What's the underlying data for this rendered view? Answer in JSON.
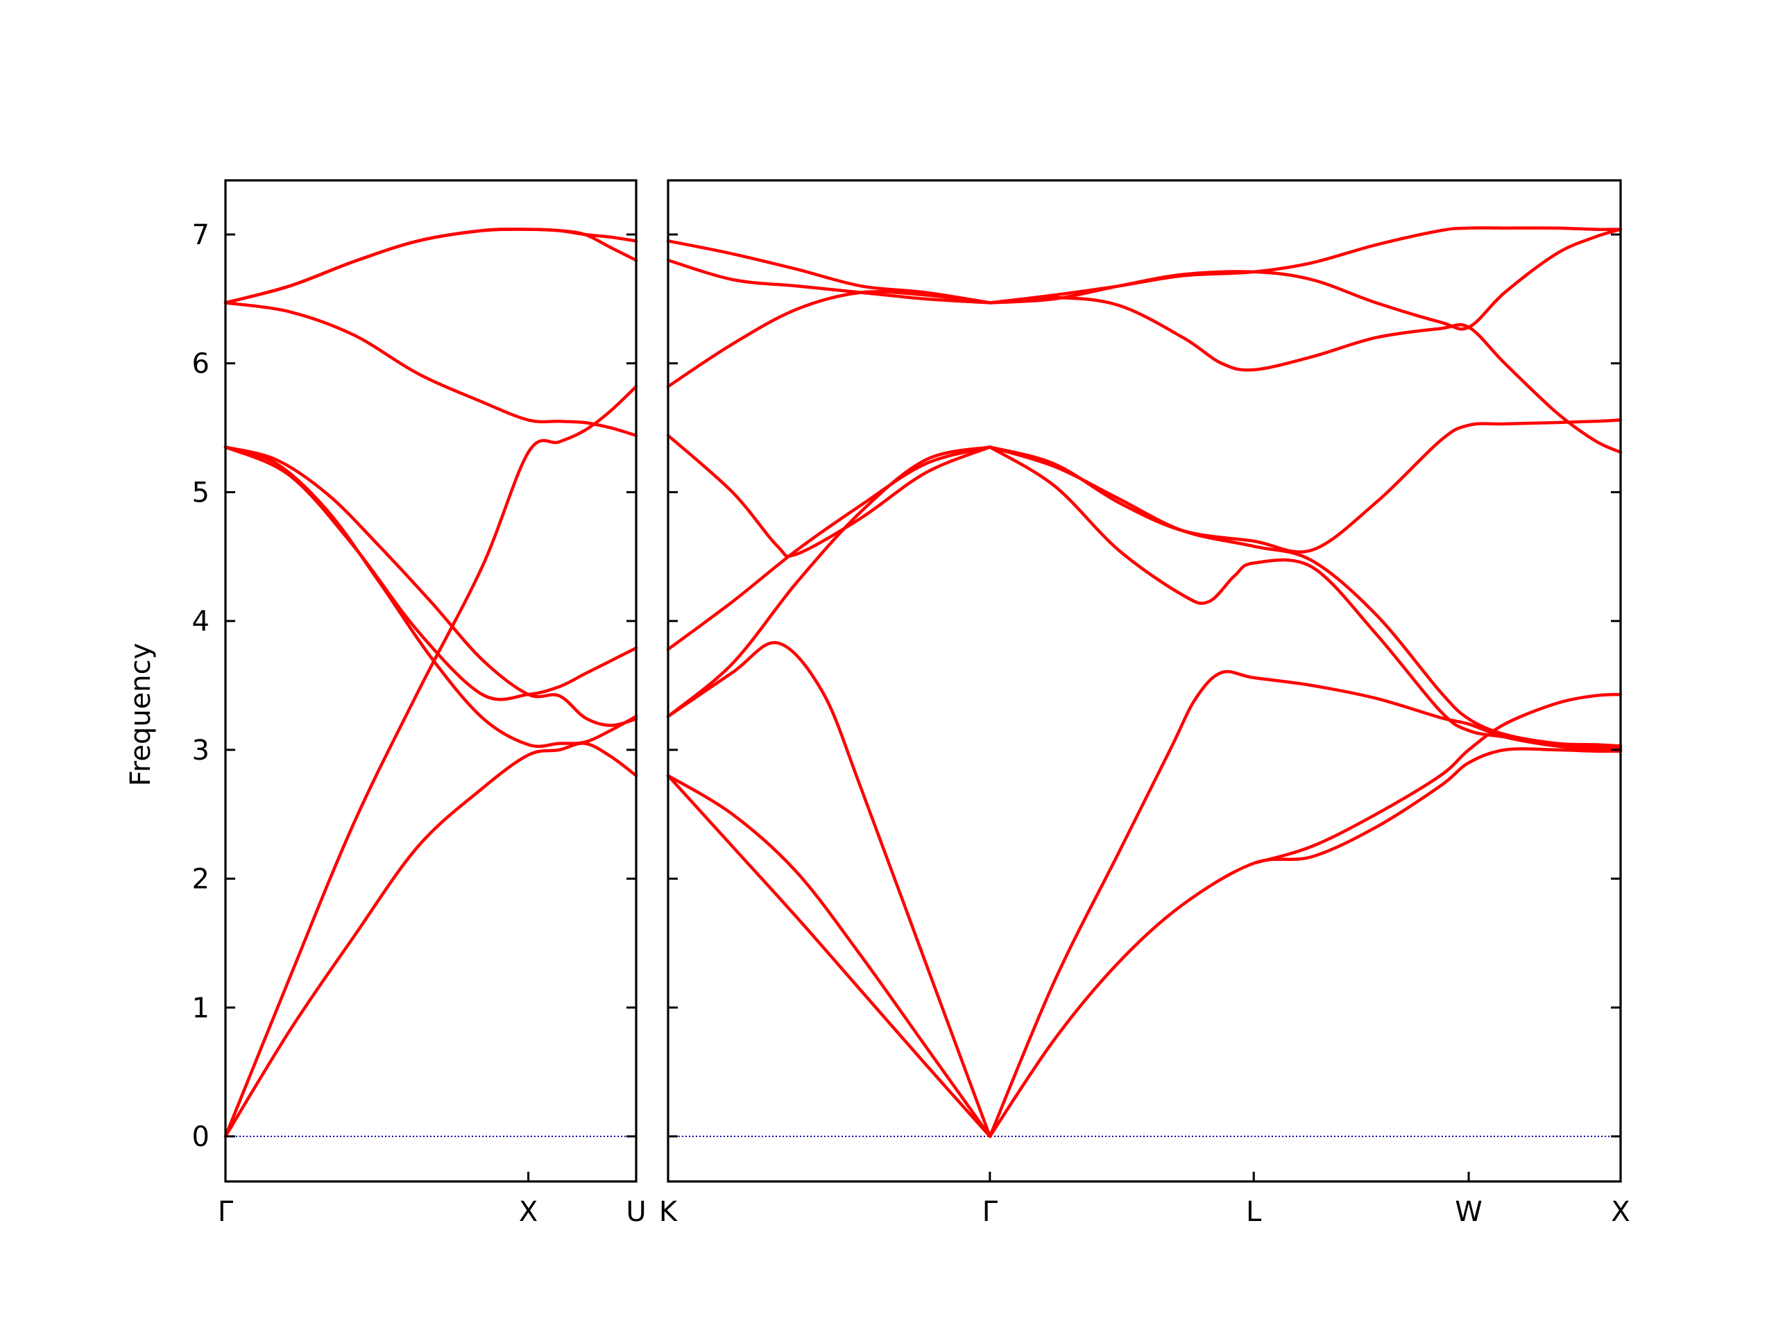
{
  "chart_data": {
    "type": "line",
    "ylabel": "Frequency",
    "ylim": [
      -0.35,
      7.42
    ],
    "yticks": [
      0,
      1,
      2,
      3,
      4,
      5,
      6,
      7
    ],
    "line_color": "#ff0000",
    "zero_line_color": "#0000aa",
    "grid": false,
    "panels": [
      {
        "xlim": [
          0,
          3.2
        ],
        "ticks": [
          {
            "x": 0,
            "label": "Γ"
          },
          {
            "x": 2.36,
            "label": "X"
          },
          {
            "x": 3.2,
            "label": "U"
          }
        ],
        "bands": [
          {
            "x": [
              0,
              0.5,
              1.0,
              1.5,
              2.0,
              2.36,
              2.6,
              2.8,
              3.0,
              3.2
            ],
            "y": [
              0,
              1.23,
              2.43,
              3.45,
              4.42,
              5.31,
              5.39,
              5.48,
              5.63,
              5.82
            ]
          },
          {
            "x": [
              0,
              0.5,
              1.0,
              1.5,
              2.0,
              2.36,
              2.6,
              2.8,
              3.0,
              3.2
            ],
            "y": [
              0,
              0.82,
              1.55,
              2.25,
              2.7,
              2.96,
              3.0,
              3.05,
              2.95,
              2.8
            ]
          },
          {
            "x": [
              0,
              0.4,
              0.8,
              1.2,
              1.6,
              2.0,
              2.36,
              2.6,
              2.8,
              3.0,
              3.2
            ],
            "y": [
              5.35,
              5.22,
              4.85,
              4.3,
              3.72,
              3.25,
              3.04,
              3.05,
              3.06,
              3.15,
              3.26
            ]
          },
          {
            "x": [
              0,
              0.4,
              0.8,
              1.2,
              1.6,
              2.0,
              2.36,
              2.6,
              2.8,
              3.0,
              3.2
            ],
            "y": [
              5.35,
              5.25,
              4.98,
              4.58,
              4.15,
              3.7,
              3.43,
              3.42,
              3.25,
              3.19,
              3.24
            ]
          },
          {
            "x": [
              0,
              0.5,
              1.0,
              1.5,
              2.0,
              2.36,
              2.6,
              2.8,
              3.0,
              3.2
            ],
            "y": [
              5.35,
              5.13,
              4.58,
              3.92,
              3.43,
              3.43,
              3.49,
              3.59,
              3.69,
              3.79
            ]
          },
          {
            "x": [
              0,
              0.5,
              1.0,
              1.5,
              2.0,
              2.36,
              2.6,
              2.8,
              3.0,
              3.2
            ],
            "y": [
              6.47,
              6.4,
              6.22,
              5.92,
              5.7,
              5.56,
              5.55,
              5.54,
              5.5,
              5.44
            ]
          },
          {
            "x": [
              0,
              0.5,
              1.0,
              1.5,
              2.0,
              2.36,
              2.6,
              2.8,
              3.0,
              3.2
            ],
            "y": [
              6.47,
              6.6,
              6.79,
              6.95,
              7.03,
              7.04,
              7.03,
              7.0,
              6.9,
              6.8
            ]
          },
          {
            "x": [
              0,
              0.5,
              1.0,
              1.5,
              2.0,
              2.36,
              2.6,
              2.8,
              3.0,
              3.2
            ],
            "y": [
              6.47,
              6.6,
              6.79,
              6.95,
              7.03,
              7.04,
              7.03,
              7.0,
              6.98,
              6.95
            ]
          }
        ]
      },
      {
        "xlim": [
          0,
          7.4
        ],
        "ticks": [
          {
            "x": 0,
            "label": "K"
          },
          {
            "x": 2.5,
            "label": "Γ"
          },
          {
            "x": 4.55,
            "label": "L"
          },
          {
            "x": 6.22,
            "label": "W"
          },
          {
            "x": 7.4,
            "label": "X"
          }
        ],
        "bands": [
          {
            "x": [
              0,
              0.5,
              1.0,
              1.5,
              2.0,
              2.5
            ],
            "y": [
              2.8,
              2.25,
              1.7,
              1.13,
              0.56,
              0
            ]
          },
          {
            "x": [
              0,
              0.5,
              1.0,
              1.5,
              2.0,
              2.5
            ],
            "y": [
              2.8,
              2.5,
              2.05,
              1.4,
              0.7,
              0
            ]
          },
          {
            "x": [
              0,
              0.5,
              0.85,
              1.2,
              1.5,
              2.0,
              2.5
            ],
            "y": [
              3.26,
              3.6,
              3.83,
              3.45,
              2.7,
              1.35,
              0
            ]
          },
          {
            "x": [
              2.5,
              3.0,
              3.5,
              3.9,
              4.1,
              4.3,
              4.55,
              5.0,
              5.5,
              6.0,
              6.22,
              6.5,
              6.9,
              7.2,
              7.4
            ],
            "y": [
              0,
              1.2,
              2.2,
              3.0,
              3.4,
              3.6,
              3.56,
              3.5,
              3.4,
              3.25,
              3.2,
              3.1,
              3.03,
              3.01,
              3.0
            ]
          },
          {
            "x": [
              2.5,
              3.0,
              3.5,
              4.0,
              4.55,
              5.0,
              5.5,
              6.0,
              6.22,
              6.5,
              6.9,
              7.2,
              7.4
            ],
            "y": [
              0,
              0.75,
              1.35,
              1.8,
              2.12,
              2.17,
              2.4,
              2.72,
              2.9,
              3.0,
              3.0,
              2.99,
              2.99
            ]
          },
          {
            "x": [
              4.55,
              5.0,
              5.5,
              6.0,
              6.22,
              6.5,
              6.9,
              7.2,
              7.4
            ],
            "y": [
              2.12,
              2.25,
              2.5,
              2.8,
              3.0,
              3.2,
              3.36,
              3.42,
              3.43
            ]
          },
          {
            "x": [
              0,
              0.5,
              1.0,
              1.5,
              2.0,
              2.5
            ],
            "y": [
              3.26,
              3.67,
              4.3,
              4.85,
              5.25,
              5.35
            ]
          },
          {
            "x": [
              0,
              0.5,
              1.0,
              1.5,
              2.0,
              2.5
            ],
            "y": [
              3.78,
              4.15,
              4.55,
              4.9,
              5.22,
              5.35
            ]
          },
          {
            "x": [
              0,
              0.5,
              0.85,
              1.0,
              1.5,
              2.0,
              2.5
            ],
            "y": [
              5.44,
              5.0,
              4.58,
              4.52,
              4.8,
              5.15,
              5.35
            ]
          },
          {
            "x": [
              2.5,
              3.0,
              3.5,
              4.0,
              4.55,
              5.0,
              5.5,
              6.0,
              6.22,
              6.5,
              6.9,
              7.2,
              7.4
            ],
            "y": [
              5.35,
              5.2,
              4.95,
              4.7,
              4.58,
              4.47,
              4.05,
              3.45,
              3.24,
              3.12,
              3.05,
              3.04,
              3.03
            ]
          },
          {
            "x": [
              2.5,
              3.0,
              3.5,
              4.0,
              4.2,
              4.4,
              4.55,
              5.0,
              5.5,
              6.0,
              6.22,
              6.5,
              6.9,
              7.2,
              7.4
            ],
            "y": [
              5.35,
              5.05,
              4.55,
              4.2,
              4.15,
              4.35,
              4.45,
              4.42,
              3.9,
              3.3,
              3.15,
              3.1,
              3.05,
              3.03,
              3.02
            ]
          },
          {
            "x": [
              2.5,
              3.0,
              3.5,
              4.0,
              4.55,
              5.0,
              5.5,
              6.0,
              6.22,
              6.5,
              6.9,
              7.2,
              7.4
            ],
            "y": [
              5.35,
              5.22,
              4.92,
              4.7,
              4.62,
              4.55,
              4.92,
              5.4,
              5.52,
              5.53,
              5.54,
              5.55,
              5.56
            ]
          },
          {
            "x": [
              0,
              0.5,
              1.0,
              1.5,
              2.0,
              2.5
            ],
            "y": [
              5.82,
              6.15,
              6.42,
              6.55,
              6.53,
              6.47
            ]
          },
          {
            "x": [
              0,
              0.5,
              1.0,
              1.5,
              2.0,
              2.5
            ],
            "y": [
              6.8,
              6.65,
              6.6,
              6.55,
              6.5,
              6.47
            ]
          },
          {
            "x": [
              0,
              0.5,
              1.0,
              1.5,
              2.0,
              2.5
            ],
            "y": [
              6.95,
              6.85,
              6.73,
              6.6,
              6.55,
              6.47
            ]
          },
          {
            "x": [
              2.5,
              3.0,
              3.5,
              4.0,
              4.3,
              4.55,
              5.0,
              5.5,
              6.0,
              6.22,
              6.5,
              6.9,
              7.2,
              7.4
            ],
            "y": [
              6.47,
              6.51,
              6.45,
              6.2,
              6.0,
              5.95,
              6.05,
              6.2,
              6.27,
              6.28,
              6.0,
              5.62,
              5.4,
              5.31
            ]
          },
          {
            "x": [
              2.5,
              3.0,
              3.5,
              4.0,
              4.55,
              5.0,
              5.5,
              6.0,
              6.22,
              6.5,
              6.9,
              7.2,
              7.4
            ],
            "y": [
              6.47,
              6.5,
              6.6,
              6.69,
              6.71,
              6.65,
              6.47,
              6.32,
              6.28,
              6.55,
              6.85,
              6.98,
              7.04
            ]
          },
          {
            "x": [
              2.5,
              3.0,
              3.5,
              4.0,
              4.55,
              5.0,
              5.5,
              6.0,
              6.22,
              6.5,
              6.9,
              7.2,
              7.4
            ],
            "y": [
              6.47,
              6.53,
              6.6,
              6.68,
              6.71,
              6.78,
              6.92,
              7.03,
              7.05,
              7.05,
              7.05,
              7.04,
              7.04
            ]
          }
        ]
      }
    ]
  }
}
